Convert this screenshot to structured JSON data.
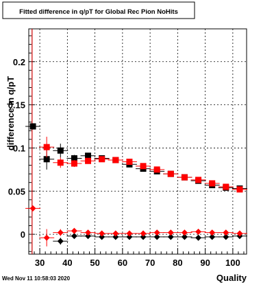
{
  "chart_data": {
    "type": "scatter",
    "title": "Fitted difference in q/pT for Global Rec Pion NoHits",
    "xlabel": "Quality",
    "ylabel": "difference in q/pT",
    "timestamp": "Wed Nov 11 10:58:03 2020",
    "xlim": [
      26.0,
      105.0
    ],
    "ylim": [
      -0.023,
      0.238
    ],
    "x_ticks": [
      30,
      40,
      50,
      60,
      70,
      80,
      90,
      100
    ],
    "x_tick_labels": [
      "30",
      "40",
      "50",
      "60",
      "70",
      "80",
      "90",
      "100"
    ],
    "y_ticks": [
      0,
      0.05,
      0.1,
      0.15,
      0.2
    ],
    "y_tick_labels": [
      "0",
      "0.05",
      "0.1",
      "0.15",
      "0.2"
    ],
    "grid": true,
    "legend": "none",
    "colors": {
      "black_series": "#000000",
      "red_series": "#ff0000"
    },
    "vertical_line": {
      "x": 27.2,
      "color": "#cc0000"
    },
    "series": [
      {
        "marker": "square",
        "color": "#000000",
        "x": [
          27.5,
          32.5,
          37.5,
          42.5,
          47.5,
          52.5,
          57.5,
          62.5,
          67.5,
          72.5,
          77.5,
          82.5,
          87.5,
          92.5,
          97.5,
          102.5
        ],
        "y": [
          0.125,
          0.087,
          0.097,
          0.088,
          0.091,
          0.088,
          0.086,
          0.081,
          0.076,
          0.073,
          0.07,
          0.066,
          0.062,
          0.057,
          0.054,
          0.053
        ],
        "yerr": [
          0.0,
          0.012,
          0.008,
          0.004,
          0.003,
          0.002,
          0.002,
          0.002,
          0.002,
          0.002,
          0.002,
          0.002,
          0.002,
          0.002,
          0.002,
          0.002
        ]
      },
      {
        "marker": "square",
        "color": "#ff0000",
        "x": [
          32.5,
          37.5,
          42.5,
          47.5,
          52.5,
          57.5,
          62.5,
          67.5,
          72.5,
          77.5,
          82.5,
          87.5,
          92.5,
          97.5,
          102.5
        ],
        "y": [
          0.101,
          0.083,
          0.082,
          0.085,
          0.087,
          0.086,
          0.084,
          0.079,
          0.075,
          0.07,
          0.066,
          0.063,
          0.059,
          0.055,
          0.052
        ],
        "yerr": [
          0.012,
          0.006,
          0.004,
          0.003,
          0.002,
          0.002,
          0.002,
          0.002,
          0.002,
          0.002,
          0.002,
          0.002,
          0.002,
          0.002,
          0.002
        ]
      },
      {
        "marker": "diamond",
        "color": "#000000",
        "x": [
          37.5,
          42.5,
          47.5,
          52.5,
          57.5,
          62.5,
          67.5,
          72.5,
          77.5,
          82.5,
          87.5,
          92.5,
          97.5,
          102.5
        ],
        "y": [
          -0.008,
          -0.002,
          -0.002,
          -0.003,
          -0.003,
          -0.003,
          -0.003,
          -0.003,
          -0.003,
          -0.003,
          -0.004,
          -0.003,
          -0.003,
          -0.002
        ],
        "yerr": [
          0.004,
          0.002,
          0.001,
          0.001,
          0.001,
          0.001,
          0.001,
          0.001,
          0.001,
          0.001,
          0.001,
          0.001,
          0.001,
          0.001
        ]
      },
      {
        "marker": "diamond",
        "color": "#ff0000",
        "x": [
          27.5,
          32.5,
          37.5,
          42.5,
          47.5,
          52.5,
          57.5,
          62.5,
          67.5,
          72.5,
          77.5,
          82.5,
          87.5,
          92.5,
          97.5,
          102.5
        ],
        "y": [
          0.03,
          -0.004,
          0.002,
          0.004,
          0.002,
          0.001,
          0.001,
          0.001,
          0.001,
          0.002,
          0.002,
          0.002,
          0.003,
          0.002,
          0.002,
          0.001
        ],
        "yerr": [
          0.0,
          0.01,
          0.004,
          0.002,
          0.001,
          0.001,
          0.001,
          0.001,
          0.001,
          0.001,
          0.001,
          0.001,
          0.001,
          0.001,
          0.001,
          0.001
        ]
      }
    ]
  }
}
